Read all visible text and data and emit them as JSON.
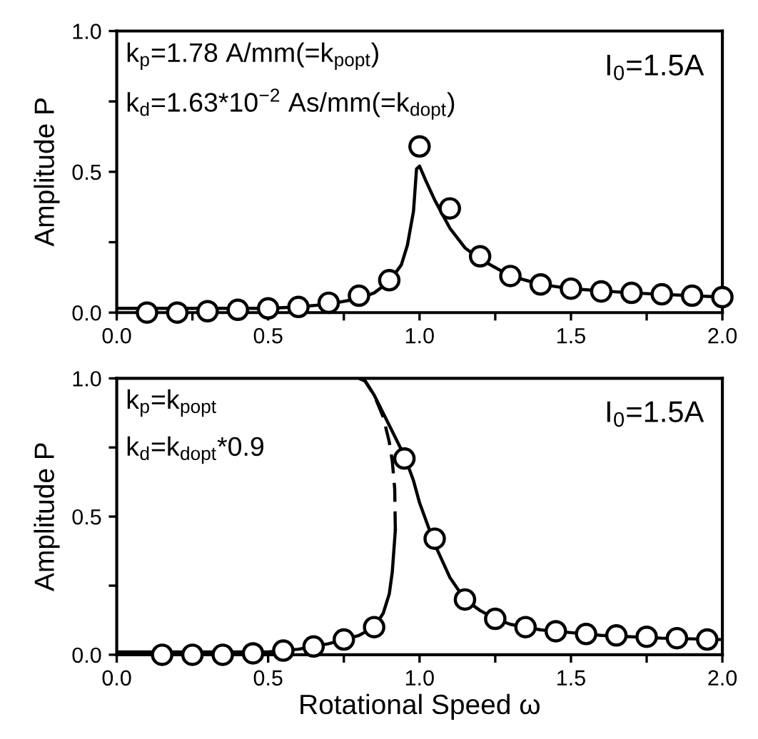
{
  "chart_data": [
    {
      "type": "line",
      "ylabel": "Amplitude P",
      "xlim": [
        0.0,
        2.0
      ],
      "ylim": [
        0.0,
        1.0
      ],
      "xticks": [
        {
          "value": 0,
          "label": "0.0"
        },
        {
          "value": 0.25,
          "label": null
        },
        {
          "value": 0.5,
          "label": "0.5"
        },
        {
          "value": 0.75,
          "label": null
        },
        {
          "value": 1,
          "label": "1.0"
        },
        {
          "value": 1.25,
          "label": null
        },
        {
          "value": 1.5,
          "label": "1.5"
        },
        {
          "value": 1.75,
          "label": null
        },
        {
          "value": 2,
          "label": "2.0"
        }
      ],
      "yticks": [
        {
          "value": 0,
          "label": "0.0"
        },
        {
          "value": 0.25,
          "label": null
        },
        {
          "value": 0.5,
          "label": "0.5"
        },
        {
          "value": 0.75,
          "label": null
        },
        {
          "value": 1,
          "label": "1.0"
        }
      ],
      "grid": false,
      "legend": false,
      "annotations": [
        "k$_{p}$=1.78 A/mm(=k$_{popt}$)",
        "k$_{d}$=1.63*10$^{−2}$ As/mm(=k$_{dopt}$)",
        "I$_{0}$=1.5A"
      ],
      "series": [
        {
          "type": "scatter",
          "marker": "circle",
          "color": "#000000",
          "x": [
            0.1,
            0.2,
            0.3,
            0.4,
            0.5,
            0.6,
            0.7,
            0.8,
            0.9,
            1.0,
            1.1,
            1.2,
            1.3,
            1.4,
            1.5,
            1.6,
            1.7,
            1.8,
            1.9,
            2.0
          ],
          "values": [
            0.0,
            0.0,
            0.005,
            0.01,
            0.015,
            0.02,
            0.035,
            0.06,
            0.115,
            0.59,
            0.37,
            0.2,
            0.13,
            0.1,
            0.085,
            0.075,
            0.07,
            0.065,
            0.06,
            0.055
          ]
        },
        {
          "line_style": "solid",
          "color": "#000000",
          "x": [
            0.0,
            0.3,
            0.5,
            0.6,
            0.7,
            0.8,
            0.85,
            0.9,
            0.94,
            0.96,
            0.98,
            0.99,
            1.0,
            1.02,
            1.05,
            1.1,
            1.15,
            1.2,
            1.3,
            1.4,
            1.5,
            1.7,
            2.0
          ],
          "values": [
            0.015,
            0.015,
            0.015,
            0.02,
            0.03,
            0.05,
            0.07,
            0.11,
            0.17,
            0.24,
            0.36,
            0.51,
            0.52,
            0.47,
            0.4,
            0.3,
            0.23,
            0.19,
            0.13,
            0.1,
            0.085,
            0.07,
            0.055
          ]
        }
      ]
    },
    {
      "type": "line",
      "xlabel": "Rotational Speed ω",
      "ylabel": "Amplitude P",
      "xlim": [
        0.0,
        2.0
      ],
      "ylim": [
        0.0,
        1.0
      ],
      "xticks": [
        {
          "value": 0,
          "label": "0.0"
        },
        {
          "value": 0.25,
          "label": null
        },
        {
          "value": 0.5,
          "label": "0.5"
        },
        {
          "value": 0.75,
          "label": null
        },
        {
          "value": 1,
          "label": "1.0"
        },
        {
          "value": 1.25,
          "label": null
        },
        {
          "value": 1.5,
          "label": "1.5"
        },
        {
          "value": 1.75,
          "label": null
        },
        {
          "value": 2,
          "label": "2.0"
        }
      ],
      "yticks": [
        {
          "value": 0,
          "label": "0.0"
        },
        {
          "value": 0.25,
          "label": null
        },
        {
          "value": 0.5,
          "label": "0.5"
        },
        {
          "value": 0.75,
          "label": null
        },
        {
          "value": 1,
          "label": "1.0"
        }
      ],
      "grid": false,
      "legend": false,
      "annotations": [
        "k$_{p}$=k$_{popt}$",
        "k$_{d}$=k$_{dopt}$*0.9",
        "I$_{0}$=1.5A"
      ],
      "series": [
        {
          "type": "scatter",
          "marker": "circle",
          "color": "#000000",
          "x": [
            0.15,
            0.25,
            0.35,
            0.45,
            0.55,
            0.65,
            0.75,
            0.85,
            0.95,
            1.05,
            1.15,
            1.25,
            1.35,
            1.45,
            1.55,
            1.65,
            1.75,
            1.85,
            1.95
          ],
          "values": [
            0.0,
            0.0,
            0.0,
            0.005,
            0.015,
            0.03,
            0.055,
            0.1,
            0.71,
            0.42,
            0.2,
            0.13,
            0.1,
            0.085,
            0.075,
            0.07,
            0.065,
            0.06,
            0.055
          ]
        },
        {
          "line_style": "solid",
          "color": "#000000",
          "x": [
            0.0,
            0.3,
            0.5,
            0.6,
            0.7,
            0.8,
            0.85,
            0.88,
            0.9,
            0.91,
            0.92
          ],
          "values": [
            0.01,
            0.01,
            0.01,
            0.02,
            0.04,
            0.07,
            0.1,
            0.15,
            0.22,
            0.3,
            0.45
          ]
        },
        {
          "line_style": "dashed",
          "color": "#000000",
          "x": [
            0.92,
            0.918,
            0.91,
            0.9,
            0.88,
            0.85,
            0.82,
            0.8
          ],
          "values": [
            0.45,
            0.6,
            0.7,
            0.77,
            0.86,
            0.94,
            0.99,
            1.0
          ]
        },
        {
          "line_style": "solid",
          "color": "#000000",
          "x": [
            0.815,
            0.85,
            0.9,
            0.95,
            0.98,
            1.0,
            1.03,
            1.05,
            1.1,
            1.15,
            1.2,
            1.25,
            1.3,
            1.4,
            1.5,
            1.6,
            1.8,
            2.0
          ],
          "values": [
            1.0,
            0.94,
            0.83,
            0.72,
            0.63,
            0.55,
            0.46,
            0.4,
            0.28,
            0.2,
            0.16,
            0.13,
            0.11,
            0.09,
            0.08,
            0.07,
            0.06,
            0.055
          ]
        }
      ]
    }
  ]
}
